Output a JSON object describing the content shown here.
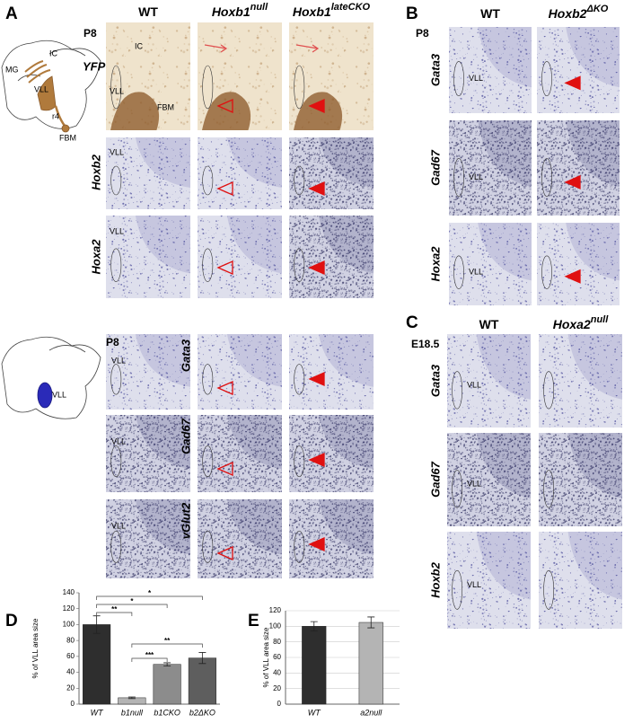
{
  "figure": {
    "panels": [
      "A",
      "B",
      "C",
      "D",
      "E"
    ],
    "a_top": {
      "stage": "P8",
      "columns": [
        {
          "gene": "WT"
        },
        {
          "gene": "Hoxb1",
          "sup": "null"
        },
        {
          "gene": "Hoxb1",
          "sup": "lateCKO"
        }
      ],
      "rows": [
        "YFP",
        "Hoxb2",
        "Hoxa2"
      ],
      "labels": [
        "IC",
        "VLL",
        "FBM",
        "VLL",
        "VLL"
      ],
      "diagram": [
        "MG",
        "IC",
        "VLL",
        "r4",
        "FBM"
      ]
    },
    "a_bottom": {
      "stage": "P8",
      "rows": [
        "Gata3",
        "Gad67",
        "vGlut2"
      ],
      "labels": [
        "VLL",
        "VLL",
        "VLL"
      ],
      "diagram": [
        "VLL"
      ]
    },
    "b": {
      "stage": "P8",
      "columns": [
        {
          "gene": "WT"
        },
        {
          "gene": "Hoxb2",
          "sup": "ΔKO"
        }
      ],
      "rows": [
        "Gata3",
        "Gad67",
        "Hoxa2"
      ],
      "labels": [
        "VLL",
        "VLL",
        "VLL"
      ]
    },
    "c": {
      "stage": "E18.5",
      "columns": [
        {
          "gene": "WT"
        },
        {
          "gene": "Hoxa2",
          "sup": "null"
        }
      ],
      "rows": [
        "Gata3",
        "Gad67",
        "Hoxb2"
      ],
      "labels": [
        "VLL",
        "VLL",
        "VLL"
      ]
    }
  },
  "chart_data": [
    {
      "type": "bar",
      "ylabel": "% of VLL area size",
      "categories": [
        "WT",
        "b1null",
        "b1CKO",
        "b2ΔKO"
      ],
      "values": [
        100,
        8,
        50,
        58
      ],
      "errors": [
        11,
        1,
        2,
        7
      ],
      "colors": [
        "#2e2e2e",
        "#b4b4b4",
        "#8c8c8c",
        "#5e5e5e"
      ],
      "ylim": [
        0,
        140
      ],
      "yticks": [
        0,
        20,
        40,
        60,
        80,
        100,
        120,
        140
      ],
      "grid": false,
      "significance": [
        "*",
        "*",
        "**",
        "**",
        "***"
      ]
    },
    {
      "type": "bar",
      "ylabel": "% of VLL area size",
      "categories": [
        "WT",
        "a2null"
      ],
      "values": [
        100,
        105
      ],
      "errors": [
        6,
        7
      ],
      "colors": [
        "#2e2e2e",
        "#b4b4b4"
      ],
      "ylim": [
        0,
        120
      ],
      "yticks": [
        0,
        20,
        40,
        60,
        80,
        100,
        120
      ],
      "grid": true
    }
  ]
}
